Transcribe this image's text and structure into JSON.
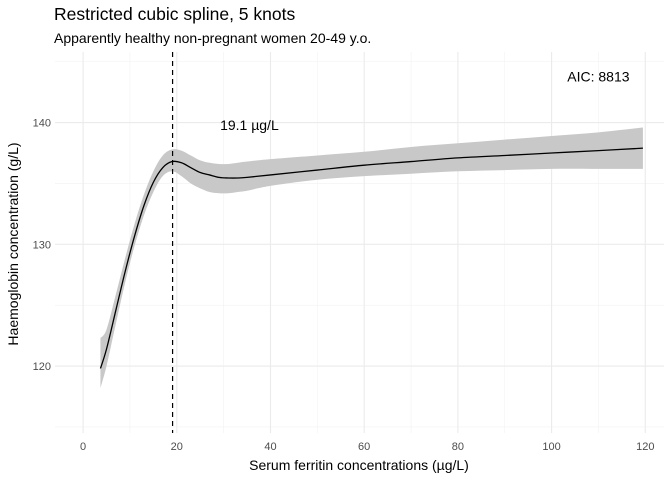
{
  "chart_data": {
    "type": "line",
    "title": "Restricted cubic spline, 5 knots",
    "subtitle": "Apparently healthy non-pregnant women 20-49 y.o.",
    "xlabel": "Serum ferritin concentrations (µg/L)",
    "ylabel": "Haemoglobin concentration (g/L)",
    "xlim": [
      -6,
      124
    ],
    "ylim": [
      114.5,
      145.8
    ],
    "x_ticks": [
      0,
      20,
      40,
      60,
      80,
      100,
      120
    ],
    "y_ticks": [
      120,
      130,
      140
    ],
    "grid": true,
    "series": [
      {
        "name": "fit",
        "x": [
          3.7,
          5,
          7,
          9,
          11,
          13,
          15,
          17,
          19,
          21,
          23,
          25,
          27,
          29,
          31,
          33,
          35,
          40,
          50,
          60,
          70,
          80,
          90,
          100,
          110,
          119.5
        ],
        "y": [
          119.8,
          121.4,
          124.6,
          127.8,
          130.7,
          133.2,
          135.1,
          136.3,
          136.8,
          136.7,
          136.3,
          135.9,
          135.7,
          135.5,
          135.45,
          135.45,
          135.5,
          135.7,
          136.1,
          136.5,
          136.8,
          137.1,
          137.3,
          137.5,
          137.7,
          137.9
        ],
        "lower": [
          118.2,
          120.0,
          123.5,
          126.9,
          129.9,
          132.4,
          134.3,
          135.6,
          136.0,
          135.6,
          135.0,
          134.6,
          134.3,
          134.2,
          134.2,
          134.3,
          134.4,
          134.8,
          135.3,
          135.6,
          135.8,
          136.0,
          136.1,
          136.2,
          136.2,
          136.2
        ],
        "upper": [
          122.3,
          123.0,
          125.9,
          128.9,
          131.7,
          134.1,
          136.0,
          137.3,
          137.8,
          137.7,
          137.3,
          136.9,
          136.7,
          136.6,
          136.6,
          136.7,
          136.8,
          137.0,
          137.3,
          137.6,
          138.0,
          138.3,
          138.6,
          138.9,
          139.2,
          139.6
        ]
      }
    ],
    "vline": {
      "x": 19.1,
      "style": "dashed"
    },
    "annotations": [
      {
        "text": "19.1 µg/L",
        "x": 35.5,
        "y": 139.8
      },
      {
        "text": "AIC: 8813",
        "x": 110,
        "y": 143.8
      }
    ]
  }
}
